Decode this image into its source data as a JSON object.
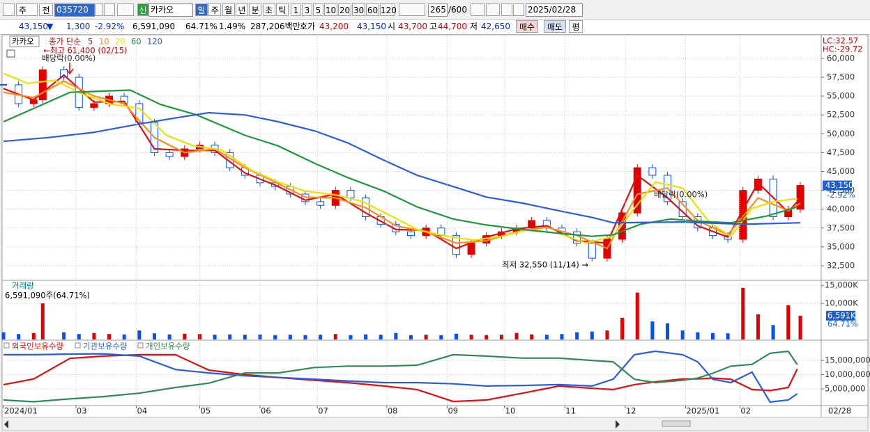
{
  "toolbar": {
    "period_type": "주",
    "price_type": "전",
    "code": "035720",
    "badge": "신",
    "name": "카카오",
    "intervals": [
      "일",
      "주",
      "월",
      "년",
      "분",
      "초",
      "틱"
    ],
    "minutes": [
      "1",
      "3",
      "5",
      "10",
      "20",
      "30",
      "60",
      "120"
    ],
    "count": "265",
    "max_count": "/600",
    "date": "2025/02/28"
  },
  "quote": {
    "price": "43,150",
    "arrow": "▼",
    "change": "1,300",
    "change_rate": "-2.92%",
    "volume": "6,591,090",
    "volume_ratio": "64.71%",
    "turnover": "1.49%",
    "amount": "287,206백만",
    "ask_label": "호가",
    "ask": "43,200",
    "bid": "43,150",
    "open_label": "시",
    "open": "43,700",
    "high_label": "고",
    "high": "44,700",
    "low_label": "저",
    "low": "42,650",
    "buy": "매수",
    "sell": "매도",
    "avg": "평"
  },
  "chart_data": [
    {
      "type": "candlestick",
      "title": "카카오",
      "indicator": "종가 단순",
      "xlim": [
        0,
        270
      ],
      "ylim": [
        30650,
        62950
      ],
      "grid": true,
      "yticks": [
        {
          "value": 32500,
          "label": "32,500"
        },
        {
          "value": 35000,
          "label": "35,000"
        },
        {
          "value": 37500,
          "label": "37,500"
        },
        {
          "value": 40000,
          "label": "40,000"
        },
        {
          "value": 42500,
          "label": "42,500"
        },
        {
          "value": 45000,
          "label": "45,000"
        },
        {
          "value": 47500,
          "label": "47,500"
        },
        {
          "value": 50000,
          "label": "50,000"
        },
        {
          "value": 52500,
          "label": "52,500"
        },
        {
          "value": 55000,
          "label": "55,000"
        },
        {
          "value": 57500,
          "label": "57,500"
        },
        {
          "value": 60000,
          "label": "60,000"
        }
      ],
      "up_color": "#e00000",
      "down_color": "#0050ff",
      "candles": {
        "x": [
          0,
          5,
          10,
          13,
          20,
          25,
          30,
          35,
          40,
          45,
          50,
          55,
          60,
          65,
          70,
          75,
          80,
          85,
          90,
          95,
          100,
          105,
          110,
          115,
          120,
          125,
          130,
          135,
          140,
          145,
          150,
          155,
          160,
          165,
          170,
          175,
          180,
          185,
          190,
          195,
          200,
          205,
          210,
          215,
          220,
          225,
          230,
          235,
          240,
          245,
          250,
          255,
          260,
          264
        ],
        "close": [
          56500,
          54000,
          54500,
          58500,
          57500,
          53500,
          54000,
          55000,
          54000,
          51500,
          47500,
          47000,
          48000,
          48500,
          47500,
          45500,
          44500,
          43500,
          43000,
          42000,
          41000,
          40500,
          42500,
          41500,
          39000,
          38000,
          37000,
          36500,
          37500,
          36500,
          34000,
          35500,
          36500,
          37000,
          37500,
          38500,
          37500,
          37000,
          35500,
          33500,
          36000,
          39500,
          45500,
          44500,
          41000,
          39000,
          37500,
          36500,
          36000,
          42500,
          44000,
          39000,
          40000,
          43150
        ]
      },
      "series": [
        {
          "name": "5",
          "color": "#e01010",
          "x": [
            0,
            10,
            20,
            30,
            40,
            50,
            60,
            70,
            80,
            90,
            100,
            110,
            120,
            130,
            140,
            150,
            160,
            170,
            180,
            190,
            200,
            210,
            220,
            230,
            240,
            250,
            260,
            264
          ],
          "values": [
            56000,
            54500,
            57800,
            54200,
            54300,
            48000,
            47800,
            47800,
            44800,
            43200,
            41200,
            42000,
            39500,
            37300,
            37200,
            34800,
            36300,
            37400,
            37800,
            35800,
            35500,
            44500,
            41500,
            37800,
            36300,
            43500,
            39600,
            41500
          ]
        },
        {
          "name": "10",
          "color": "#ff8c1a",
          "x": [
            0,
            10,
            20,
            30,
            40,
            50,
            60,
            70,
            80,
            90,
            100,
            110,
            120,
            130,
            140,
            150,
            160,
            170,
            180,
            190,
            200,
            210,
            220,
            230,
            240,
            250,
            260,
            264
          ],
          "values": [
            55500,
            54800,
            57000,
            55000,
            54000,
            49500,
            47500,
            48000,
            45500,
            43600,
            41600,
            41500,
            40200,
            37800,
            37000,
            35500,
            35800,
            37000,
            37600,
            36500,
            34800,
            42000,
            42800,
            38500,
            36600,
            41500,
            39800,
            40800
          ]
        },
        {
          "name": "20",
          "color": "#f0e000",
          "x": [
            0,
            8,
            17,
            26,
            36,
            45,
            54,
            63,
            72,
            82,
            91,
            100,
            110,
            119,
            128,
            137,
            147,
            156,
            165,
            174,
            184,
            193,
            202,
            209,
            216,
            225,
            234,
            241,
            248,
            255,
            263
          ],
          "values": [
            58000,
            56700,
            57100,
            55300,
            53900,
            53400,
            49800,
            48400,
            47900,
            45200,
            43600,
            42400,
            41900,
            41000,
            39200,
            37300,
            36400,
            35900,
            36400,
            37300,
            36800,
            35500,
            36400,
            40100,
            43600,
            42800,
            38200,
            36400,
            40100,
            41000,
            41400
          ]
        },
        {
          "name": "60",
          "color": "#1a9a3a",
          "x": [
            0,
            13,
            22,
            42,
            52,
            64,
            80,
            91,
            103,
            114,
            126,
            137,
            149,
            160,
            172,
            184,
            195,
            202,
            211,
            221,
            230,
            241,
            253,
            263
          ],
          "values": [
            51600,
            53900,
            55500,
            55800,
            53900,
            52500,
            49800,
            48400,
            46100,
            44200,
            42400,
            40300,
            38700,
            37900,
            37300,
            36800,
            36400,
            36600,
            38000,
            38700,
            38400,
            38200,
            39100,
            40300
          ]
        },
        {
          "name": "120",
          "color": "#2a5ce0",
          "x": [
            0,
            15,
            30,
            45,
            60,
            68,
            80,
            91,
            103,
            114,
            126,
            137,
            149,
            160,
            172,
            184,
            195,
            202,
            225,
            245,
            264
          ],
          "values": [
            49000,
            49500,
            50200,
            51300,
            52300,
            52800,
            52500,
            51600,
            50400,
            48800,
            46500,
            44500,
            43000,
            41600,
            40800,
            39800,
            38900,
            38200,
            38300,
            38000,
            38200
          ]
        }
      ],
      "annotations": {
        "high": "←최고 61,400 (02/15)",
        "ex_dividend": "배당락(0.00%)",
        "ex_dividend_2": "배당락(0.00%)",
        "low": "최저 32,550 (11/14) →",
        "lc": "LC:32.57",
        "hc": "HC:-29.72",
        "last_price": "43,150",
        "last_change": "-2.92%"
      }
    },
    {
      "type": "bar",
      "title": "거래량",
      "subtitle": "6,591,090주(64.71%)",
      "xlim": [
        0,
        270
      ],
      "ylim": [
        0,
        16000
      ],
      "grid": true,
      "yticks": [
        {
          "value": 10000,
          "label": "10,000K"
        },
        {
          "value": 15000,
          "label": "15,000K"
        }
      ],
      "x": [
        0,
        5,
        10,
        13,
        20,
        25,
        30,
        35,
        40,
        45,
        50,
        55,
        60,
        65,
        70,
        75,
        80,
        85,
        90,
        95,
        100,
        105,
        110,
        115,
        120,
        125,
        130,
        135,
        140,
        145,
        150,
        155,
        160,
        165,
        170,
        175,
        180,
        185,
        190,
        195,
        200,
        205,
        210,
        215,
        220,
        225,
        230,
        235,
        240,
        245,
        250,
        255,
        260,
        264
      ],
      "values": [
        2000,
        1500,
        1800,
        10000,
        2000,
        1500,
        1800,
        1500,
        1400,
        2500,
        1700,
        1400,
        1600,
        1500,
        1300,
        1400,
        1300,
        1400,
        1200,
        1300,
        1200,
        1300,
        1500,
        1200,
        1400,
        1300,
        1800,
        1200,
        1300,
        1200,
        1600,
        1300,
        1200,
        1300,
        1800,
        1400,
        1300,
        1500,
        2000,
        2200,
        2500,
        6000,
        13000,
        5000,
        4500,
        2500,
        2000,
        1800,
        1700,
        14300,
        7000,
        4000,
        9500,
        6591
      ],
      "last_label": "6,591K",
      "last_ratio": "64.71%"
    },
    {
      "type": "line",
      "xlim": [
        0,
        270
      ],
      "ylim": [
        -600000,
        21600000
      ],
      "grid": true,
      "yticks": [
        {
          "value": 5000000,
          "label": "5,000,000"
        },
        {
          "value": 10000000,
          "label": "10,000,000"
        },
        {
          "value": 15000000,
          "label": "15,000,000"
        }
      ],
      "xticks": [
        {
          "value": 0,
          "label": "2024/01"
        },
        {
          "value": 24,
          "label": "03"
        },
        {
          "value": 44,
          "label": "04"
        },
        {
          "value": 65,
          "label": "05"
        },
        {
          "value": 85,
          "label": "06"
        },
        {
          "value": 104,
          "label": "07"
        },
        {
          "value": 127,
          "label": "08"
        },
        {
          "value": 147,
          "label": "09"
        },
        {
          "value": 166,
          "label": "10"
        },
        {
          "value": 186,
          "label": "11"
        },
        {
          "value": 206,
          "label": "12"
        },
        {
          "value": 226,
          "label": "2025/01"
        },
        {
          "value": 244,
          "label": "02"
        }
      ],
      "last_date": "02/28",
      "x": [
        0,
        10,
        22,
        33,
        45,
        57,
        68,
        80,
        91,
        103,
        114,
        126,
        137,
        149,
        160,
        172,
        184,
        195,
        202,
        209,
        216,
        225,
        230,
        235,
        241,
        248,
        254,
        260,
        263
      ],
      "series": [
        {
          "name": "외국인보유수량",
          "color": "#e01010",
          "values": [
            6500000,
            8500000,
            15700000,
            16500000,
            17000000,
            17000000,
            11600000,
            10000000,
            9000000,
            8000000,
            7200000,
            6000000,
            4800000,
            600000,
            1100000,
            3500000,
            6000000,
            5200000,
            4800000,
            6500000,
            7500000,
            8500000,
            8500000,
            8800000,
            8400000,
            4800000,
            4400000,
            5500000,
            12000000
          ]
        },
        {
          "name": "기관보유수량",
          "color": "#2a5ce0",
          "values": [
            17000000,
            17000000,
            17200000,
            17300000,
            16500000,
            11800000,
            10600000,
            9600000,
            9000000,
            8400000,
            7800000,
            7200000,
            7200000,
            6800000,
            6000000,
            6200000,
            6500000,
            6000000,
            8400000,
            17000000,
            18200000,
            17000000,
            14500000,
            8400000,
            7200000,
            10900000,
            400000,
            1100000,
            3300000
          ]
        },
        {
          "name": "개인보유수량",
          "color": "#2e8b57",
          "values": [
            1100000,
            500000,
            1500000,
            2300000,
            3500000,
            5500000,
            7000000,
            10600000,
            10600000,
            12500000,
            13000000,
            13000000,
            13300000,
            17000000,
            16500000,
            15800000,
            15800000,
            15000000,
            14500000,
            8400000,
            7200000,
            8000000,
            8800000,
            10500000,
            13000000,
            13600000,
            17500000,
            18200000,
            13500000
          ]
        }
      ]
    }
  ]
}
